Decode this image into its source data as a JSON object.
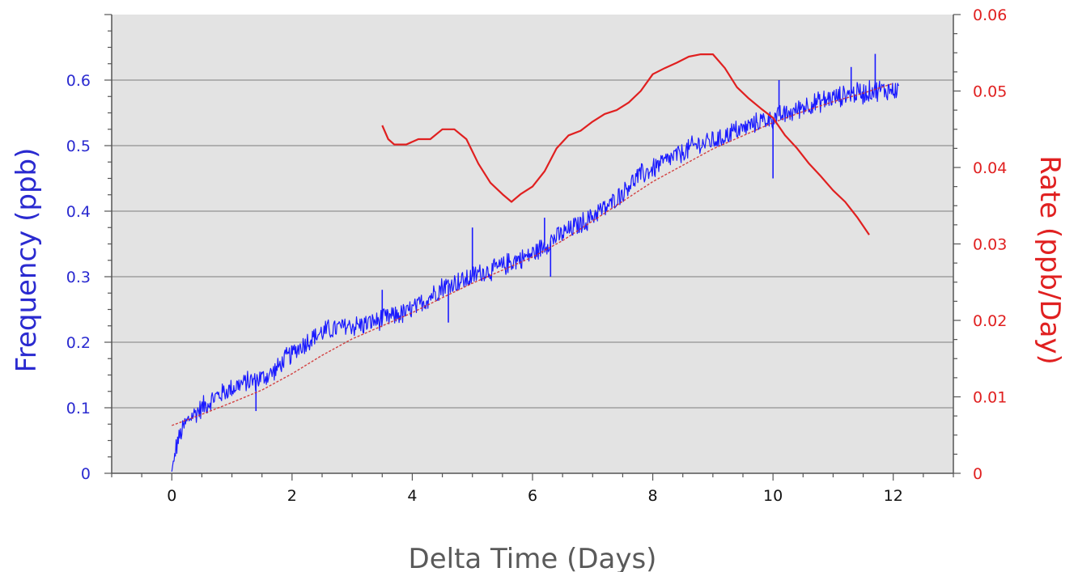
{
  "chart_data": {
    "type": "line",
    "title": "",
    "xlabel": "Delta Time (Days)",
    "ylabel_left": "Frequency (ppb)",
    "ylabel_right": "Rate (ppb/Day)",
    "xlim": [
      -1,
      13
    ],
    "ylim_left": [
      0,
      0.7
    ],
    "ylim_right": [
      0,
      0.06
    ],
    "x_ticks": [
      "0",
      "2",
      "4",
      "6",
      "8",
      "10",
      "12"
    ],
    "y_left_ticks": [
      "0",
      "0.1",
      "0.2",
      "0.3",
      "0.4",
      "0.5",
      "0.6"
    ],
    "y_right_ticks": [
      "0",
      "0.01",
      "0.02",
      "0.03",
      "0.04",
      "0.05",
      "0.06"
    ],
    "grid": true,
    "colors": {
      "plot_bg": "#e3e3e3",
      "grid": "#a0a0a0",
      "frequency": "#1a1aff",
      "fit": "#d03030",
      "rate": "#e02020",
      "left_axis_text": "#2a2ad0",
      "right_axis_text": "#e02020",
      "x_axis_text": "#5a5a5a"
    },
    "series": [
      {
        "axis": "left",
        "noisy": true,
        "x": [
          0,
          0.05,
          0.1,
          0.2,
          0.3,
          0.5,
          0.7,
          0.9,
          1.1,
          1.3,
          1.5,
          1.7,
          1.9,
          2.1,
          2.3,
          2.5,
          2.7,
          2.9,
          3.1,
          3.3,
          3.5,
          3.7,
          3.9,
          4.1,
          4.3,
          4.5,
          4.7,
          4.9,
          5.1,
          5.3,
          5.5,
          5.7,
          5.9,
          6.1,
          6.3,
          6.5,
          6.7,
          6.9,
          7.1,
          7.3,
          7.5,
          7.7,
          7.9,
          8.1,
          8.3,
          8.5,
          8.7,
          8.9,
          9.1,
          9.3,
          9.5,
          9.7,
          9.9,
          10.1,
          10.3,
          10.5,
          10.7,
          10.9,
          11.1,
          11.3,
          11.5,
          11.7,
          11.9,
          12.1
        ],
        "y": [
          0.0,
          0.03,
          0.05,
          0.07,
          0.085,
          0.1,
          0.115,
          0.125,
          0.135,
          0.14,
          0.145,
          0.155,
          0.175,
          0.19,
          0.205,
          0.215,
          0.22,
          0.225,
          0.225,
          0.23,
          0.235,
          0.24,
          0.245,
          0.255,
          0.27,
          0.285,
          0.29,
          0.295,
          0.305,
          0.31,
          0.315,
          0.325,
          0.33,
          0.34,
          0.355,
          0.365,
          0.375,
          0.385,
          0.4,
          0.41,
          0.43,
          0.45,
          0.46,
          0.47,
          0.48,
          0.49,
          0.5,
          0.505,
          0.51,
          0.52,
          0.525,
          0.535,
          0.54,
          0.545,
          0.55,
          0.56,
          0.565,
          0.57,
          0.575,
          0.58,
          0.58,
          0.585,
          0.585,
          0.585
        ],
        "spikes": [
          [
            0.0,
            0.0
          ],
          [
            1.4,
            0.095
          ],
          [
            3.5,
            0.28
          ],
          [
            4.6,
            0.23
          ],
          [
            5.0,
            0.375
          ],
          [
            6.3,
            0.3
          ],
          [
            6.2,
            0.39
          ],
          [
            10.0,
            0.45
          ],
          [
            10.1,
            0.6
          ],
          [
            11.7,
            0.64
          ],
          [
            11.3,
            0.62
          ]
        ]
      },
      {
        "axis": "left",
        "x": [
          0,
          0.5,
          1,
          1.5,
          2,
          2.5,
          3,
          3.5,
          4,
          4.5,
          5,
          5.5,
          6,
          6.5,
          7,
          7.5,
          8,
          8.5,
          9,
          9.5,
          10,
          10.5,
          11,
          11.5,
          12
        ],
        "y": [
          0.073,
          0.09,
          0.108,
          0.127,
          0.152,
          0.18,
          0.205,
          0.225,
          0.245,
          0.268,
          0.29,
          0.31,
          0.33,
          0.355,
          0.385,
          0.415,
          0.445,
          0.47,
          0.495,
          0.515,
          0.535,
          0.552,
          0.567,
          0.58,
          0.595
        ]
      },
      {
        "axis": "right",
        "x": [
          3.5,
          3.6,
          3.7,
          3.9,
          4.1,
          4.3,
          4.5,
          4.7,
          4.9,
          5.1,
          5.3,
          5.5,
          5.65,
          5.8,
          6.0,
          6.2,
          6.4,
          6.6,
          6.8,
          7.0,
          7.2,
          7.4,
          7.6,
          7.8,
          8.0,
          8.2,
          8.4,
          8.6,
          8.8,
          9.0,
          9.2,
          9.4,
          9.6,
          9.8,
          10.0,
          10.2,
          10.4,
          10.6,
          10.8,
          11.0,
          11.2,
          11.4,
          11.6
        ],
        "y": [
          0.0455,
          0.0437,
          0.043,
          0.043,
          0.0437,
          0.0437,
          0.045,
          0.045,
          0.0437,
          0.0405,
          0.038,
          0.0365,
          0.0355,
          0.0365,
          0.0375,
          0.0395,
          0.0425,
          0.0442,
          0.0448,
          0.046,
          0.047,
          0.0475,
          0.0485,
          0.05,
          0.0522,
          0.053,
          0.0537,
          0.0545,
          0.0548,
          0.0548,
          0.053,
          0.0505,
          0.049,
          0.0477,
          0.0465,
          0.0442,
          0.0425,
          0.0405,
          0.0388,
          0.037,
          0.0355,
          0.0335,
          0.0312
        ]
      }
    ]
  }
}
